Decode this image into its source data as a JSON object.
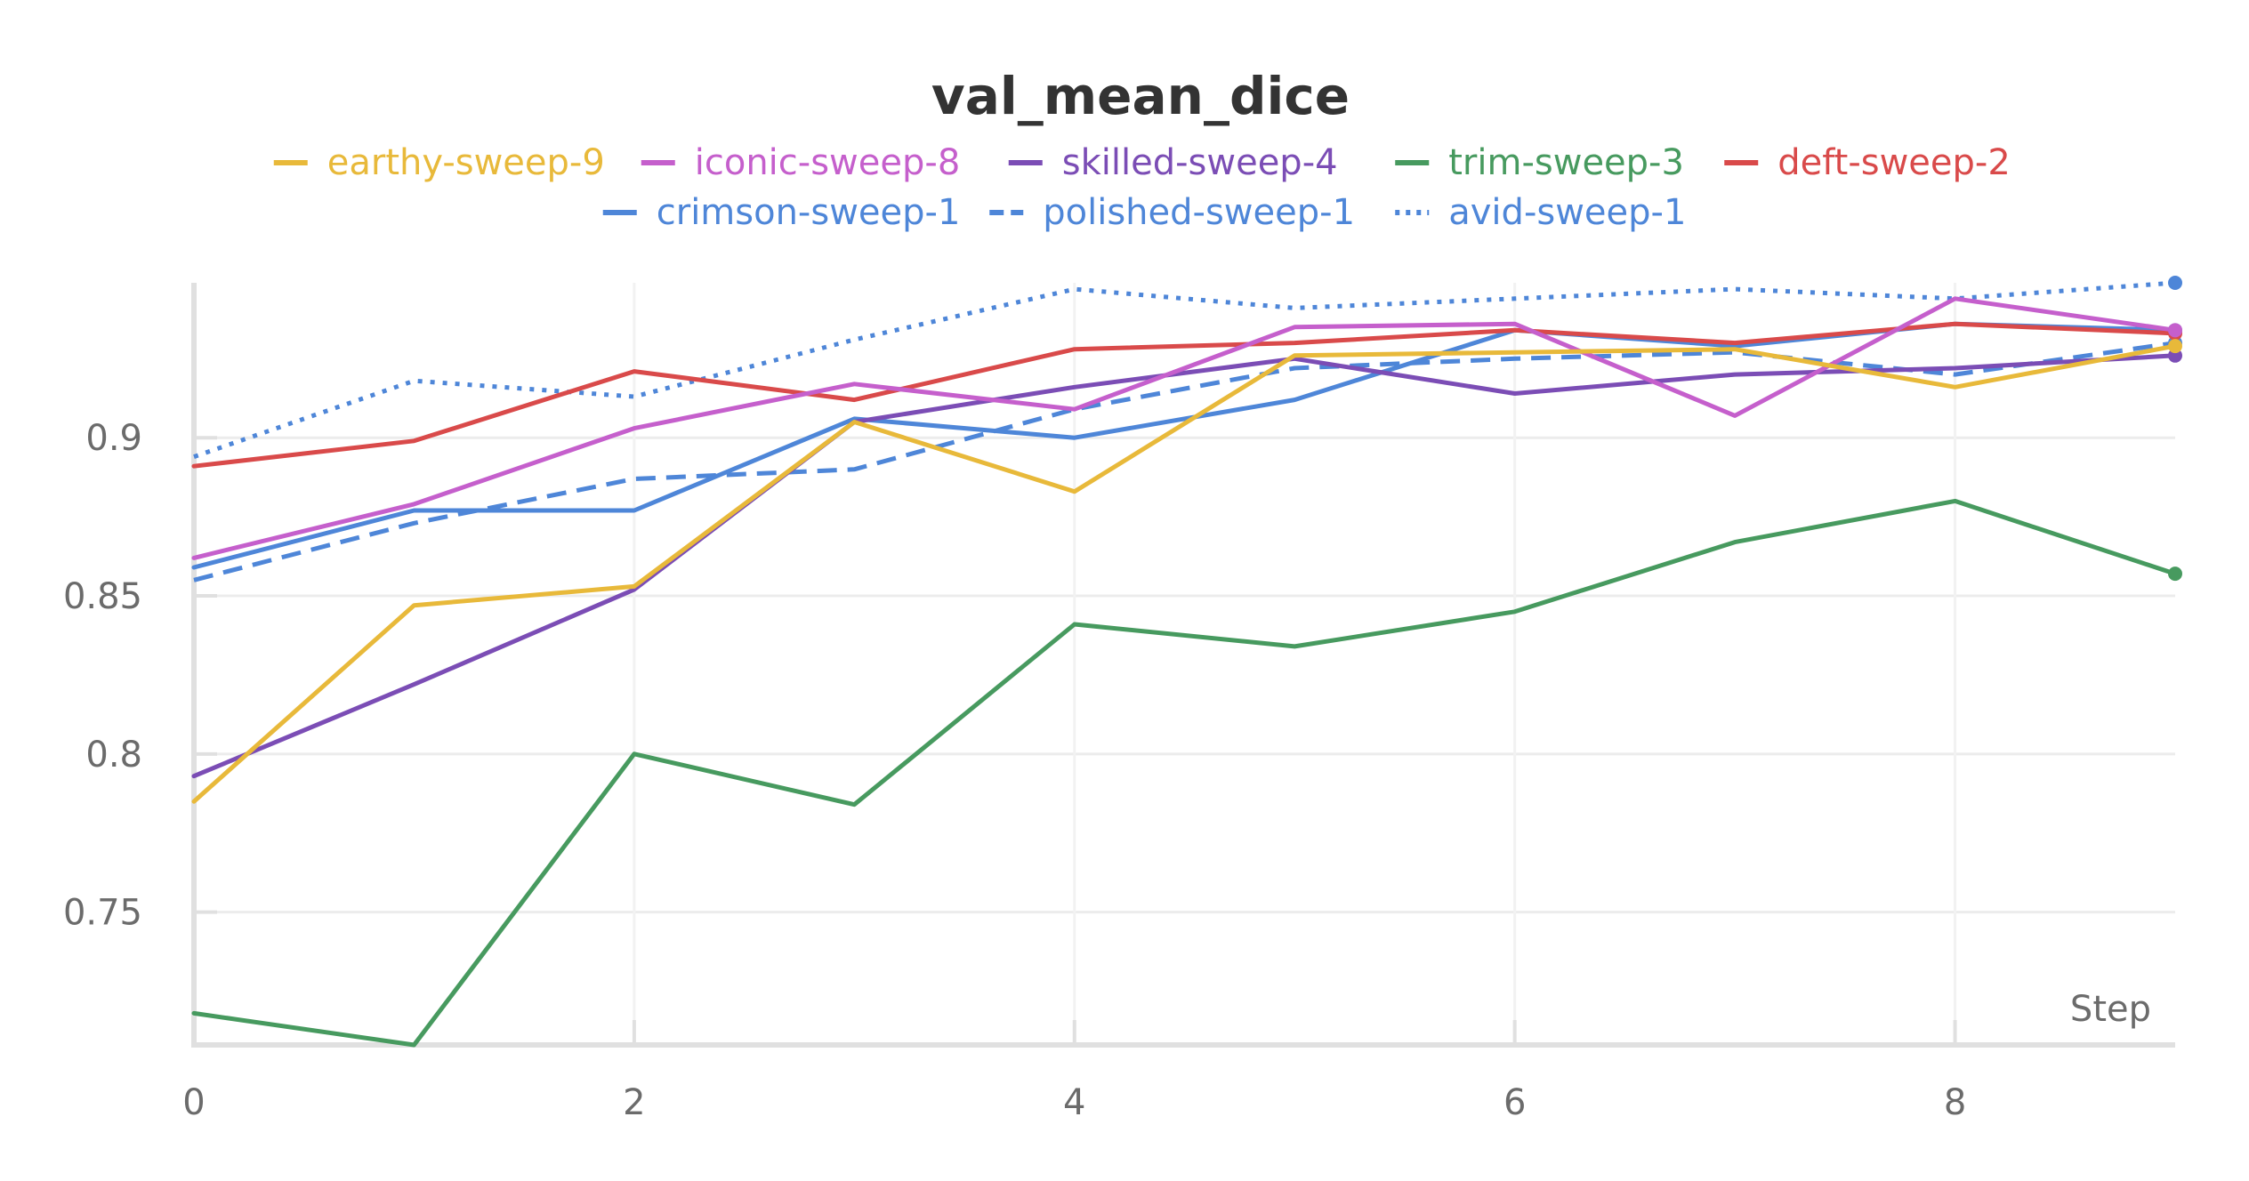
{
  "chart_data": {
    "type": "line",
    "title": "val_mean_dice",
    "xlabel": "Step",
    "ylabel": "",
    "xlim": [
      0,
      9
    ],
    "ylim": [
      0.708,
      0.949
    ],
    "x_ticks": [
      0,
      2,
      4,
      6,
      8
    ],
    "y_ticks": [
      0.75,
      0.8,
      0.85,
      0.9
    ],
    "grid": true,
    "legend_position": "top",
    "x": [
      0,
      1,
      2,
      3,
      4,
      5,
      6,
      7,
      8,
      9
    ],
    "series": [
      {
        "name": "earthy-sweep-9",
        "color": "#e8b93a",
        "dash": "solid",
        "values": [
          0.785,
          0.847,
          0.853,
          0.905,
          0.883,
          0.926,
          0.927,
          0.928,
          0.916,
          0.929
        ]
      },
      {
        "name": "iconic-sweep-8",
        "color": "#c55fcc",
        "dash": "solid",
        "values": [
          0.862,
          0.879,
          0.903,
          0.917,
          0.909,
          0.935,
          0.936,
          0.907,
          0.944,
          0.934
        ]
      },
      {
        "name": "skilled-sweep-4",
        "color": "#7b4db5",
        "dash": "solid",
        "values": [
          0.793,
          0.822,
          0.852,
          0.905,
          0.916,
          0.925,
          0.914,
          0.92,
          0.922,
          0.926
        ]
      },
      {
        "name": "trim-sweep-3",
        "color": "#479a5f",
        "dash": "solid",
        "values": [
          0.718,
          0.708,
          0.8,
          0.784,
          0.841,
          0.834,
          0.845,
          0.867,
          0.88,
          0.857
        ]
      },
      {
        "name": "deft-sweep-2",
        "color": "#d94a4a",
        "dash": "solid",
        "values": [
          0.891,
          0.899,
          0.921,
          0.912,
          0.928,
          0.93,
          0.934,
          0.93,
          0.936,
          0.933
        ]
      },
      {
        "name": "crimson-sweep-1",
        "color": "#4e86d8",
        "dash": "solid",
        "values": [
          0.859,
          0.877,
          0.877,
          0.906,
          0.9,
          0.912,
          0.934,
          0.929,
          0.936,
          0.934
        ]
      },
      {
        "name": "polished-sweep-1",
        "color": "#4e86d8",
        "dash": "dashed",
        "values": [
          0.855,
          0.873,
          0.887,
          0.89,
          0.909,
          0.922,
          0.925,
          0.927,
          0.92,
          0.93
        ]
      },
      {
        "name": "avid-sweep-1",
        "color": "#4e86d8",
        "dash": "dotted",
        "values": [
          0.894,
          0.918,
          0.913,
          0.931,
          0.947,
          0.941,
          0.944,
          0.947,
          0.944,
          0.949
        ]
      }
    ]
  }
}
